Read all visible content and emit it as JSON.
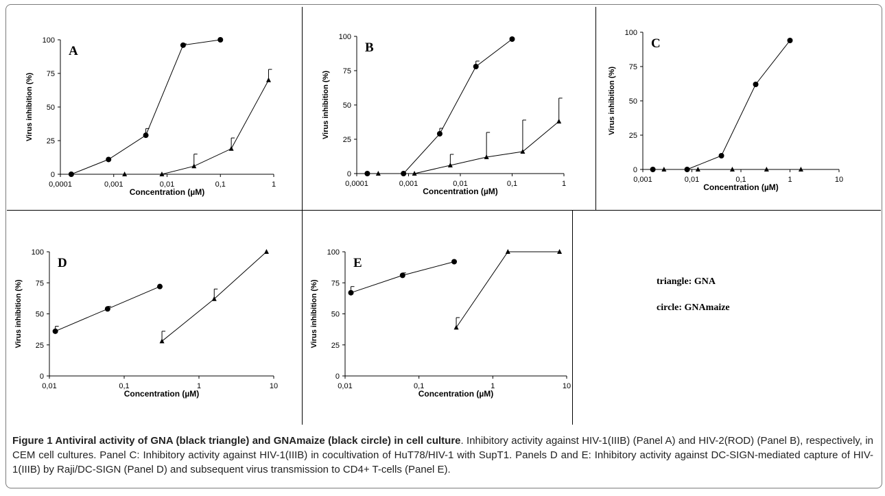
{
  "figure": {
    "legend": [
      "triangle: GNA",
      "circle: GNAmaize"
    ],
    "caption": {
      "title": "Figure 1 Antiviral activity of GNA (black triangle) and GNAmaize (black circle) in cell culture",
      "text": "Inhibitory activity against HIV-1(IIIB) (Panel A) and HIV-2(ROD) (Panel B), respectively, in CEM cell cultures. Panel C: Inhibitory activity against HIV-1(IIIB) in cocultivation of HuT78/HIV-1 with SupT1. Panels D and E: Inhibitory activity against DC-SIGN-mediated capture of HIV-1(IIIB) by Raji/DC-SIGN (Panel D) and subsequent virus transmission to CD4+ T-cells (Panel E)."
    }
  },
  "chart_data": [
    {
      "panel": "A",
      "type": "line",
      "xscale": "log",
      "ylabel": "Virus inhibition (%)",
      "xlabel": "Concentration (µM)",
      "xlim": [
        0.0001,
        1
      ],
      "ylim": [
        0,
        100
      ],
      "xticks": [
        "0,0001",
        "0,001",
        "0,01",
        "0,1",
        "1"
      ],
      "yticks": [
        "0",
        "25",
        "50",
        "75",
        "100"
      ],
      "series": [
        {
          "marker": "triangle",
          "x": [
            0.0016,
            0.008,
            0.032,
            0.16,
            0.8
          ],
          "y": [
            0,
            0,
            6,
            19,
            70
          ],
          "err": [
            0,
            0,
            9,
            8,
            8
          ]
        },
        {
          "marker": "circle",
          "x": [
            0.00016,
            0.0008,
            0.004,
            0.02,
            0.1
          ],
          "y": [
            0,
            11,
            29,
            96,
            100
          ],
          "err": [
            0,
            0,
            5,
            1,
            0
          ]
        }
      ]
    },
    {
      "panel": "B",
      "type": "line",
      "xscale": "log",
      "ylabel": "Virus inhibition (%)",
      "xlabel": "Concentration (µM)",
      "xlim": [
        0.0001,
        1
      ],
      "ylim": [
        0,
        100
      ],
      "xticks": [
        "0,0001",
        "0,001",
        "0,01",
        "0,1",
        "1"
      ],
      "yticks": [
        "0",
        "25",
        "50",
        "75",
        "100"
      ],
      "series": [
        {
          "marker": "triangle",
          "x": [
            0.00026,
            0.0013,
            0.0064,
            0.032,
            0.16,
            0.8
          ],
          "y": [
            0,
            0,
            6,
            12,
            16,
            38
          ],
          "err": [
            0,
            0,
            8,
            18,
            23,
            17
          ]
        },
        {
          "marker": "circle",
          "x": [
            0.00016,
            0.0008,
            0.004,
            0.02,
            0.1
          ],
          "y": [
            0,
            0,
            29,
            78,
            98
          ],
          "err": [
            0,
            0,
            4,
            4,
            0
          ]
        }
      ]
    },
    {
      "panel": "C",
      "type": "line",
      "xscale": "log",
      "ylabel": "Virus inhibition (%)",
      "xlabel": "Concentration (µM)",
      "xlim": [
        0.001,
        10
      ],
      "ylim": [
        0,
        100
      ],
      "xticks": [
        "0,001",
        "0,01",
        "0,1",
        "1",
        "10"
      ],
      "yticks": [
        "0",
        "25",
        "50",
        "75",
        "100"
      ],
      "series": [
        {
          "marker": "triangle",
          "x": [
            0.0027,
            0.0133,
            0.0667,
            0.333,
            1.67
          ],
          "y": [
            0,
            0,
            0,
            0,
            0
          ],
          "err": [
            0,
            0,
            0,
            0,
            0
          ],
          "connect": false
        },
        {
          "marker": "circle",
          "x": [
            0.0016,
            0.008,
            0.04,
            0.2,
            1
          ],
          "y": [
            0,
            0,
            10,
            62,
            94
          ],
          "err": [
            0,
            0,
            0,
            0,
            0
          ]
        }
      ]
    },
    {
      "panel": "D",
      "type": "line",
      "xscale": "log",
      "ylabel": "Virus inhibition (%)",
      "xlabel": "Concentration (µM)",
      "xlim": [
        0.01,
        10
      ],
      "ylim": [
        0,
        100
      ],
      "xticks": [
        "0,01",
        "0,1",
        "1",
        "10"
      ],
      "yticks": [
        "0",
        "25",
        "50",
        "75",
        "100"
      ],
      "series": [
        {
          "marker": "triangle",
          "x": [
            0.32,
            1.6,
            8
          ],
          "y": [
            28,
            62,
            100
          ],
          "err": [
            8,
            8,
            0
          ]
        },
        {
          "marker": "circle",
          "x": [
            0.012,
            0.06,
            0.3
          ],
          "y": [
            36,
            54,
            72
          ],
          "err": [
            4,
            2,
            0
          ]
        }
      ]
    },
    {
      "panel": "E",
      "type": "line",
      "xscale": "log",
      "ylabel": "Virus inhibition (%)",
      "xlabel": "Concentration (µM)",
      "xlim": [
        0.01,
        10
      ],
      "ylim": [
        0,
        100
      ],
      "xticks": [
        "0,01",
        "0,1",
        "1",
        "10"
      ],
      "yticks": [
        "0",
        "25",
        "50",
        "75",
        "100"
      ],
      "series": [
        {
          "marker": "triangle",
          "x": [
            0.32,
            1.6,
            8
          ],
          "y": [
            39,
            100,
            100
          ],
          "err": [
            8,
            0,
            0
          ]
        },
        {
          "marker": "circle",
          "x": [
            0.012,
            0.06,
            0.3
          ],
          "y": [
            67,
            81,
            92
          ],
          "err": [
            5,
            2,
            0
          ]
        }
      ]
    }
  ]
}
